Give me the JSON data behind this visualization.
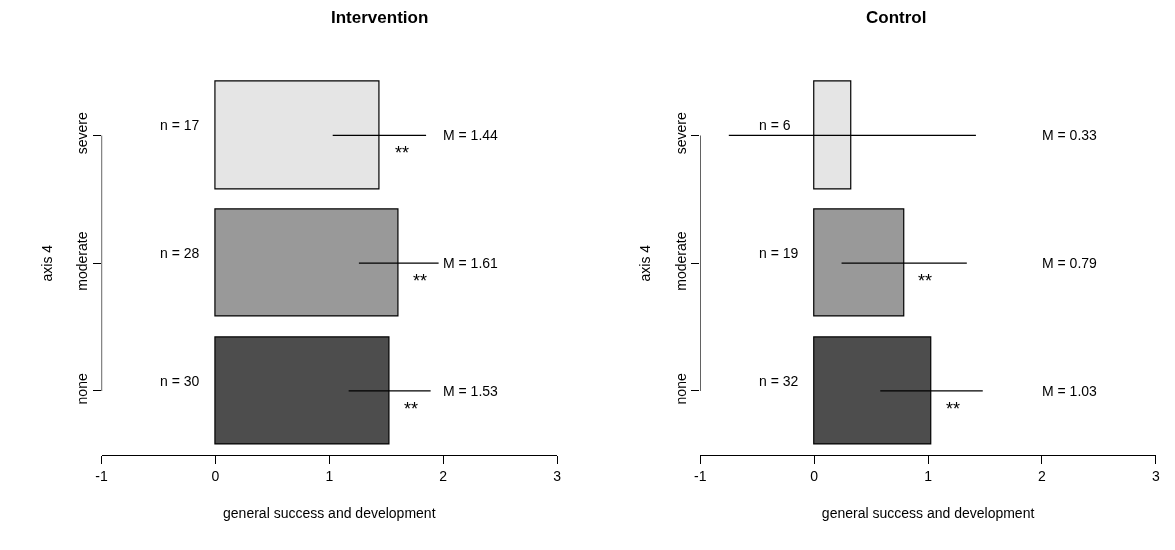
{
  "chart_data": [
    {
      "type": "bar",
      "orientation": "horizontal",
      "title": "Intervention",
      "xlabel": "general success and development",
      "ylabel": "axis 4",
      "categories": [
        "severe",
        "moderate",
        "none"
      ],
      "values": [
        1.44,
        1.61,
        1.53
      ],
      "colors": [
        "#e5e5e5",
        "#999999",
        "#4d4d4d"
      ],
      "errors": [
        [
          1.03,
          1.85
        ],
        [
          1.26,
          1.96
        ],
        [
          1.17,
          1.89
        ]
      ],
      "value_labels": [
        "M = 1.44",
        "M = 1.61",
        "M = 1.53"
      ],
      "xlim": [
        -1,
        3
      ],
      "xticks": [
        -1,
        0,
        1,
        2,
        3
      ],
      "legend": false,
      "annotations": [
        "n = 17",
        "n = 28",
        "n = 30",
        {
          "text": "**",
          "x": 1.64,
          "y": "severe"
        },
        {
          "text": "**",
          "x": 1.8,
          "y": "moderate"
        },
        {
          "text": "**",
          "x": 1.72,
          "y": "none"
        }
      ]
    },
    {
      "type": "bar",
      "orientation": "horizontal",
      "title": "Control",
      "xlabel": "general success and development",
      "ylabel": "axis 4",
      "categories": [
        "severe",
        "moderate",
        "none"
      ],
      "values": [
        0.33,
        0.79,
        1.03
      ],
      "colors": [
        "#e5e5e5",
        "#999999",
        "#4d4d4d"
      ],
      "errors": [
        [
          -0.75,
          1.42
        ],
        [
          0.24,
          1.34
        ],
        [
          0.58,
          1.48
        ]
      ],
      "value_labels": [
        "M = 0.33",
        "M = 0.79",
        "M = 1.03"
      ],
      "xlim": [
        -1,
        3
      ],
      "xticks": [
        -1,
        0,
        1,
        2,
        3
      ],
      "legend": false,
      "annotations": [
        "n = 6",
        "n = 19",
        "n = 32",
        {
          "text": "**",
          "x": 0.97,
          "y": "moderate"
        },
        {
          "text": "**",
          "x": 1.22,
          "y": "none"
        }
      ]
    }
  ]
}
